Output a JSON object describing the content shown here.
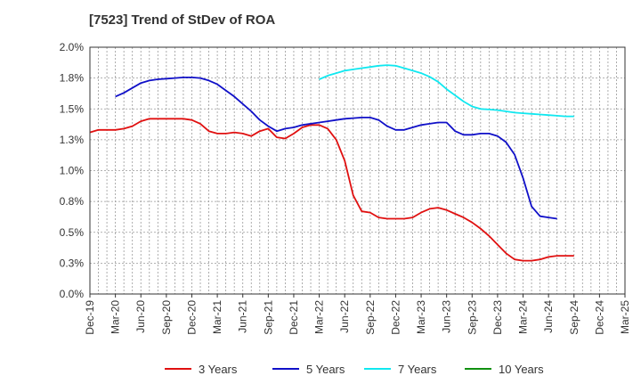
{
  "chart_data": {
    "type": "line",
    "title": "[7523]  Trend of StDev of ROA",
    "xlabel": "",
    "ylabel": "",
    "x_tick_labels": [
      "Dec-19",
      "Mar-20",
      "Jun-20",
      "Sep-20",
      "Dec-20",
      "Mar-21",
      "Jun-21",
      "Sep-21",
      "Dec-21",
      "Mar-22",
      "Jun-22",
      "Sep-22",
      "Dec-22",
      "Mar-23",
      "Jun-23",
      "Sep-23",
      "Dec-23",
      "Mar-24",
      "Jun-24",
      "Sep-24",
      "Dec-24",
      "Mar-25"
    ],
    "y_tick_labels": [
      "0.0%",
      "0.3%",
      "0.5%",
      "0.8%",
      "1.0%",
      "1.3%",
      "1.5%",
      "1.8%",
      "2.0%"
    ],
    "ylim": [
      0,
      2.0
    ],
    "y_unit": "%",
    "grid": true,
    "legend_position": "bottom",
    "series": [
      {
        "name": "3 Years",
        "color": "#e01010",
        "start_index": 0,
        "values": [
          1.31,
          1.33,
          1.33,
          1.33,
          1.34,
          1.36,
          1.4,
          1.42,
          1.42,
          1.42,
          1.42,
          1.42,
          1.41,
          1.38,
          1.32,
          1.3,
          1.3,
          1.31,
          1.3,
          1.28,
          1.32,
          1.34,
          1.27,
          1.26,
          1.3,
          1.35,
          1.37,
          1.37,
          1.34,
          1.25,
          1.08,
          0.8,
          0.67,
          0.66,
          0.62,
          0.61,
          0.61,
          0.61,
          0.62,
          0.66,
          0.69,
          0.7,
          0.68,
          0.65,
          0.62,
          0.58,
          0.53,
          0.47,
          0.4,
          0.33,
          0.28,
          0.27,
          0.27,
          0.28,
          0.3,
          0.31,
          0.31,
          0.31
        ]
      },
      {
        "name": "5 Years",
        "color": "#1010c8",
        "start_index": 3,
        "values": [
          1.6,
          1.63,
          1.67,
          1.71,
          1.73,
          1.74,
          1.745,
          1.75,
          1.755,
          1.755,
          1.75,
          1.73,
          1.7,
          1.65,
          1.6,
          1.54,
          1.48,
          1.41,
          1.36,
          1.32,
          1.34,
          1.35,
          1.37,
          1.38,
          1.39,
          1.4,
          1.41,
          1.42,
          1.425,
          1.43,
          1.43,
          1.41,
          1.36,
          1.33,
          1.33,
          1.35,
          1.37,
          1.38,
          1.39,
          1.39,
          1.32,
          1.29,
          1.29,
          1.3,
          1.3,
          1.28,
          1.23,
          1.13,
          0.94,
          0.71,
          0.63,
          0.62,
          0.61
        ]
      },
      {
        "name": "7 Years",
        "color": "#10e8f0",
        "start_index": 27,
        "values": [
          1.74,
          1.77,
          1.79,
          1.81,
          1.82,
          1.83,
          1.84,
          1.85,
          1.855,
          1.85,
          1.83,
          1.81,
          1.79,
          1.76,
          1.72,
          1.66,
          1.61,
          1.56,
          1.52,
          1.5,
          1.495,
          1.49,
          1.48,
          1.47,
          1.465,
          1.46,
          1.455,
          1.45,
          1.445,
          1.44,
          1.44
        ]
      },
      {
        "name": "10 Years",
        "color": "#109010",
        "start_index": 0,
        "values": []
      }
    ]
  }
}
